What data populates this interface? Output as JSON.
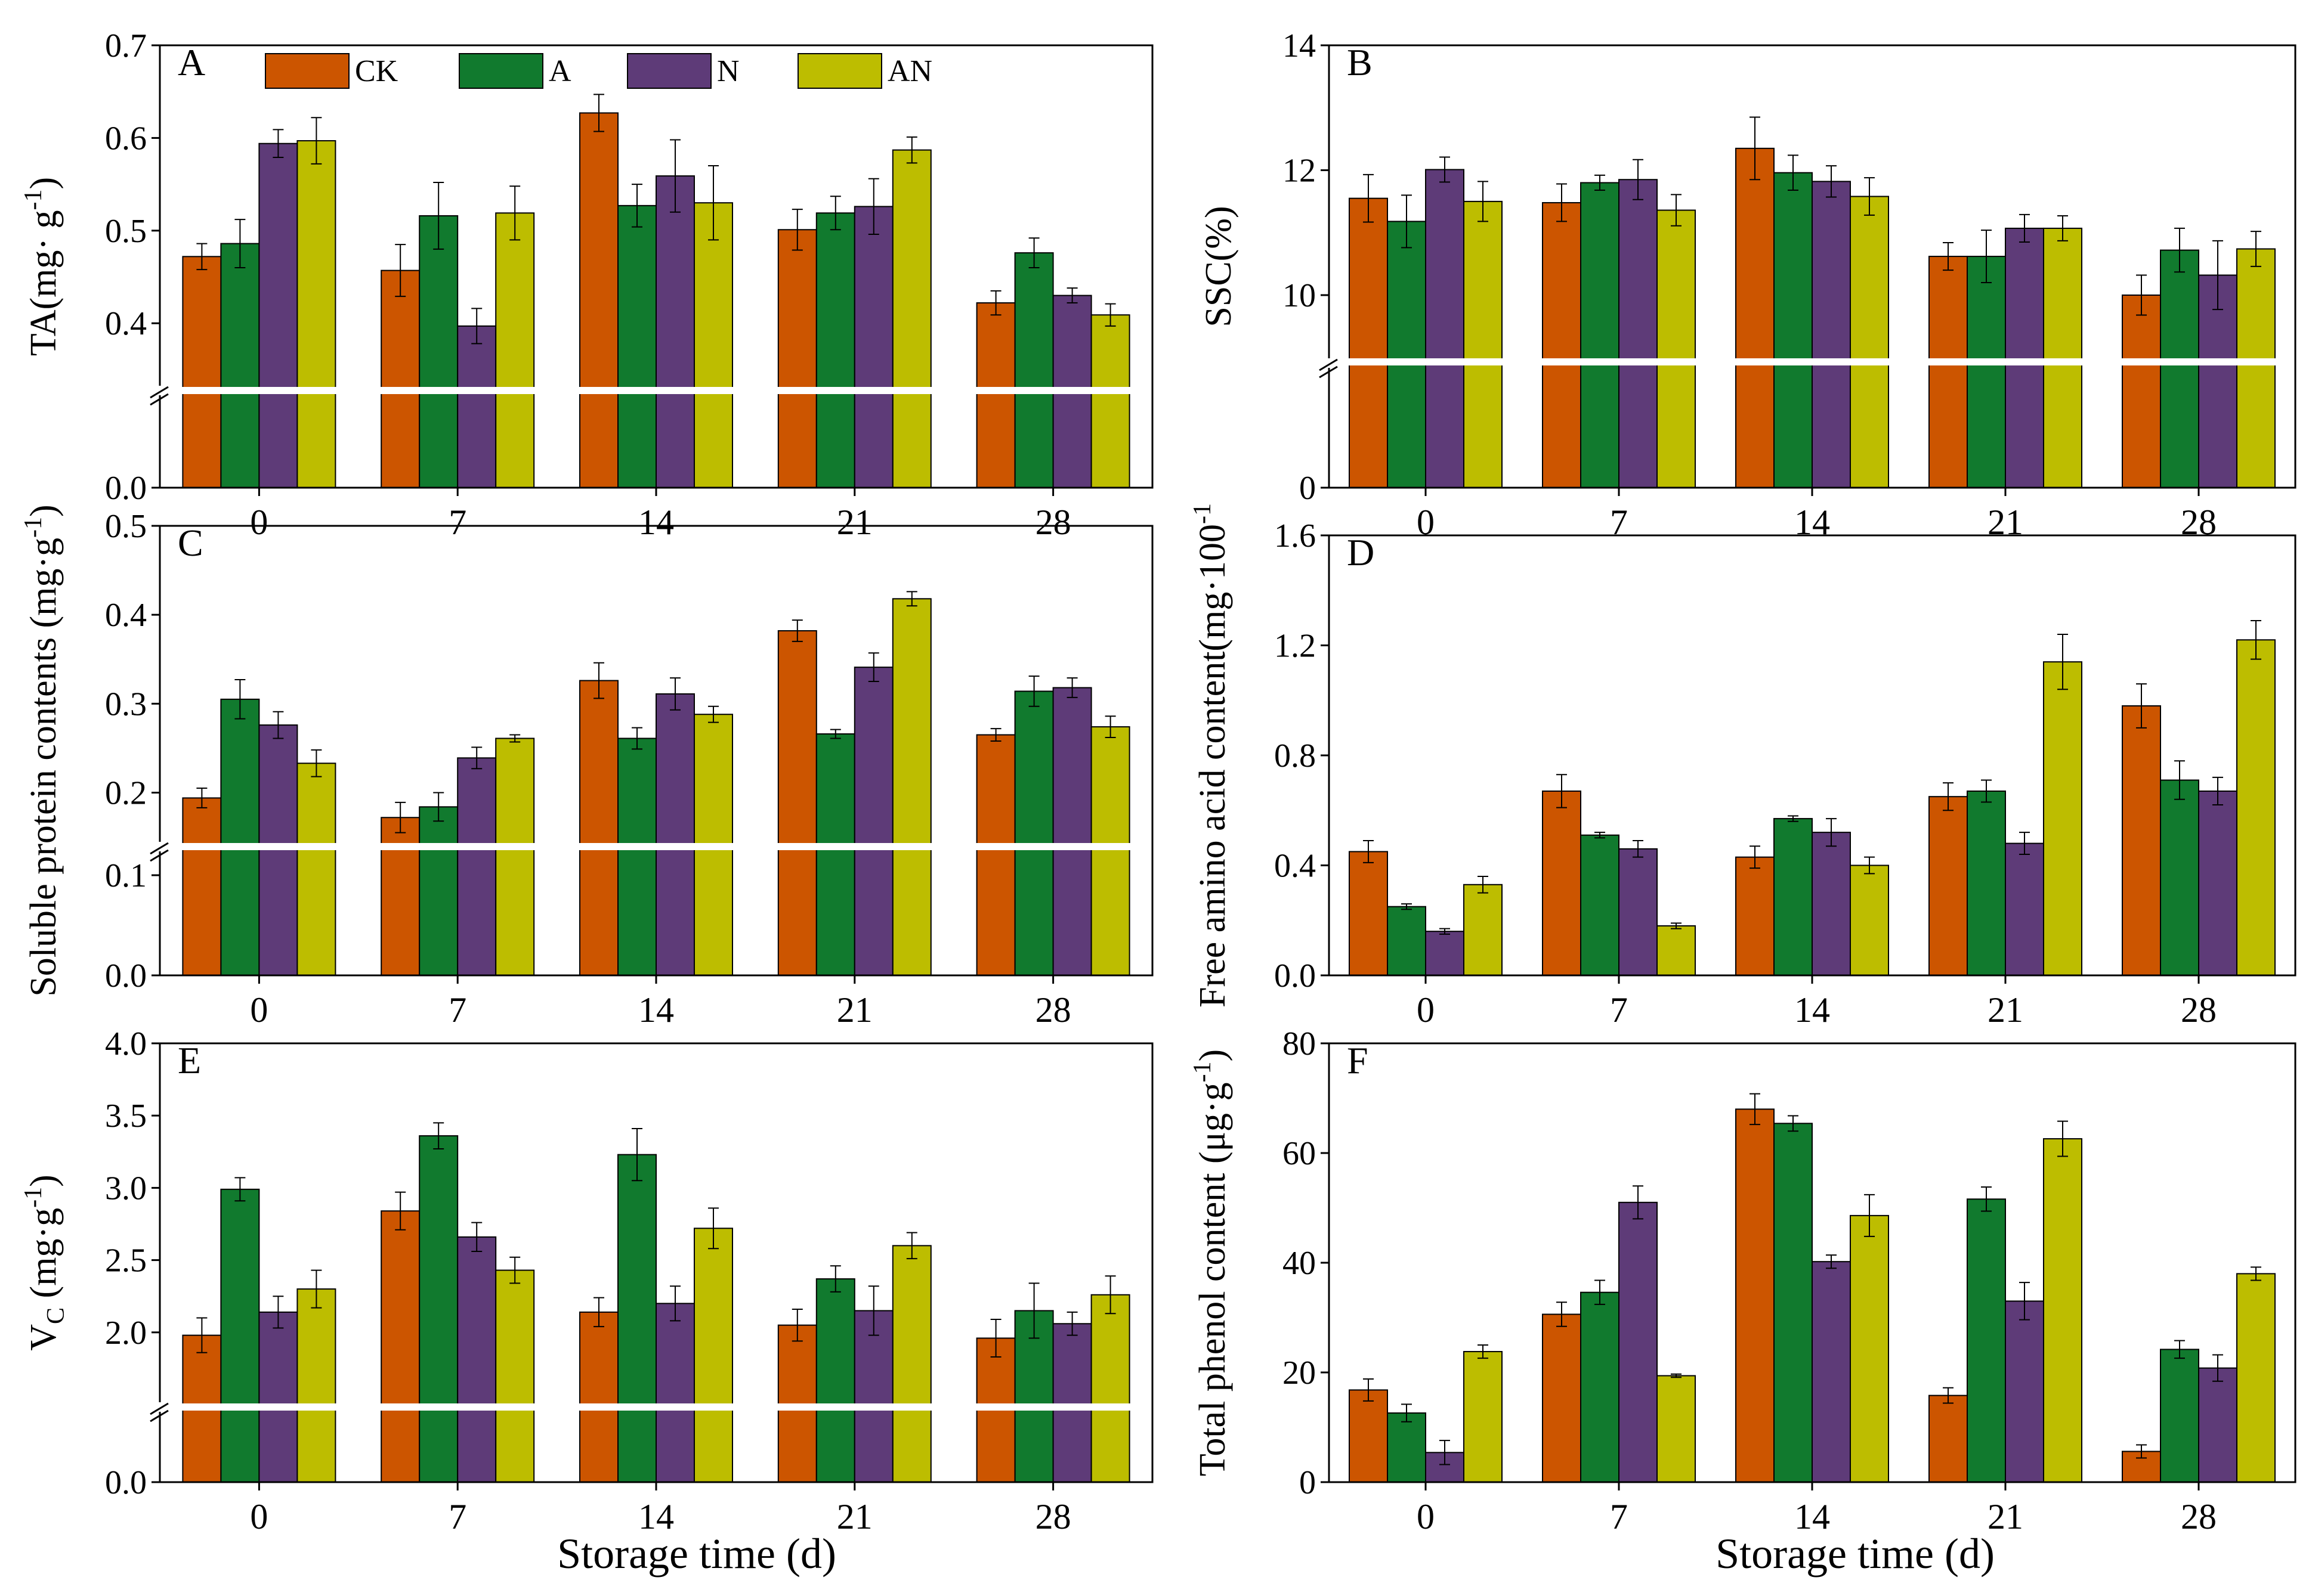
{
  "legend": {
    "entries": [
      "CK",
      "A",
      "N",
      "AN"
    ],
    "colors": [
      "#cc5500",
      "#117a2e",
      "#5e3b78",
      "#bdbd00"
    ]
  },
  "xlabel_bottom": "Storage time (d)",
  "chart_data": [
    {
      "id": "A",
      "type": "bar",
      "panel_label": "A",
      "ylabel_base": "TA(mg· g",
      "ylabel_sup": "-1",
      "ylabel_tail": ")",
      "categories": [
        "0",
        "7",
        "14",
        "21",
        "28"
      ],
      "series": [
        {
          "name": "CK",
          "values": [
            0.472,
            0.457,
            0.627,
            0.501,
            0.422
          ],
          "err": [
            0.014,
            0.028,
            0.02,
            0.022,
            0.013
          ]
        },
        {
          "name": "A",
          "values": [
            0.486,
            0.516,
            0.527,
            0.519,
            0.476
          ],
          "err": [
            0.026,
            0.036,
            0.023,
            0.018,
            0.016
          ]
        },
        {
          "name": "N",
          "values": [
            0.594,
            0.397,
            0.559,
            0.526,
            0.43
          ],
          "err": [
            0.015,
            0.019,
            0.039,
            0.03,
            0.008
          ]
        },
        {
          "name": "AN",
          "values": [
            0.597,
            0.519,
            0.53,
            0.587,
            0.409
          ],
          "err": [
            0.025,
            0.029,
            0.04,
            0.014,
            0.012
          ]
        }
      ],
      "yticks_upper": [
        "0.4",
        "0.5",
        "0.6",
        "0.7"
      ],
      "ytick_lower": "0.0",
      "ylim_upper": [
        0.33,
        0.7
      ],
      "legend_placement": "top"
    },
    {
      "id": "B",
      "type": "bar",
      "panel_label": "B",
      "ylabel_base": "SSC(%)",
      "ylabel_sup": "",
      "ylabel_tail": "",
      "categories": [
        "0",
        "7",
        "14",
        "21",
        "28"
      ],
      "series": [
        {
          "name": "CK",
          "values": [
            11.55,
            11.48,
            12.35,
            10.62,
            10.0
          ],
          "err": [
            0.38,
            0.3,
            0.5,
            0.22,
            0.32
          ]
        },
        {
          "name": "A",
          "values": [
            11.18,
            11.8,
            11.96,
            10.62,
            10.72
          ],
          "err": [
            0.42,
            0.12,
            0.28,
            0.42,
            0.35
          ]
        },
        {
          "name": "N",
          "values": [
            12.01,
            11.85,
            11.82,
            11.07,
            10.32
          ],
          "err": [
            0.2,
            0.32,
            0.25,
            0.22,
            0.55
          ]
        },
        {
          "name": "AN",
          "values": [
            11.5,
            11.36,
            11.58,
            11.07,
            10.74
          ],
          "err": [
            0.32,
            0.25,
            0.3,
            0.2,
            0.28
          ]
        }
      ],
      "yticks_upper": [
        "10",
        "12",
        "14"
      ],
      "ytick_lower": "0",
      "ylim_upper": [
        8.95,
        14
      ]
    },
    {
      "id": "C",
      "type": "bar",
      "panel_label": "C",
      "ylabel_base": "Soluble protein contents (mg·g",
      "ylabel_sup": "-1",
      "ylabel_tail": ")",
      "categories": [
        "0",
        "7",
        "14",
        "21",
        "28"
      ],
      "series": [
        {
          "name": "CK",
          "values": [
            0.194,
            0.172,
            0.326,
            0.382,
            0.265
          ],
          "err": [
            0.011,
            0.017,
            0.02,
            0.012,
            0.007
          ]
        },
        {
          "name": "A",
          "values": [
            0.305,
            0.184,
            0.261,
            0.266,
            0.314
          ],
          "err": [
            0.022,
            0.016,
            0.012,
            0.005,
            0.017
          ]
        },
        {
          "name": "N",
          "values": [
            0.276,
            0.239,
            0.311,
            0.341,
            0.318
          ],
          "err": [
            0.015,
            0.012,
            0.018,
            0.016,
            0.011
          ]
        },
        {
          "name": "AN",
          "values": [
            0.233,
            0.261,
            0.288,
            0.418,
            0.274
          ],
          "err": [
            0.015,
            0.004,
            0.009,
            0.008,
            0.012
          ]
        }
      ],
      "yticks_upper": [
        "0.2",
        "0.3",
        "0.4",
        "0.5"
      ],
      "ytick_lower": "0.0",
      "ytick_mid": "0.1",
      "ylim_upper": [
        0.142,
        0.5
      ]
    },
    {
      "id": "D",
      "type": "bar",
      "panel_label": "D",
      "ylabel_base": "Free amino acid content(mg·100",
      "ylabel_sup": "-1",
      "ylabel_tail": "",
      "categories": [
        "0",
        "7",
        "14",
        "21",
        "28"
      ],
      "series": [
        {
          "name": "CK",
          "values": [
            0.45,
            0.67,
            0.43,
            0.65,
            0.98
          ],
          "err": [
            0.04,
            0.06,
            0.04,
            0.05,
            0.08
          ]
        },
        {
          "name": "A",
          "values": [
            0.25,
            0.51,
            0.57,
            0.67,
            0.71
          ],
          "err": [
            0.01,
            0.01,
            0.01,
            0.04,
            0.07
          ]
        },
        {
          "name": "N",
          "values": [
            0.16,
            0.46,
            0.52,
            0.48,
            0.67
          ],
          "err": [
            0.01,
            0.03,
            0.05,
            0.04,
            0.05
          ]
        },
        {
          "name": "AN",
          "values": [
            0.33,
            0.18,
            0.4,
            1.14,
            1.22
          ],
          "err": [
            0.03,
            0.01,
            0.03,
            0.1,
            0.07
          ]
        }
      ],
      "yticks": [
        "0.0",
        "0.4",
        "0.8",
        "1.2",
        "1.6"
      ],
      "ylim": [
        0,
        1.6
      ]
    },
    {
      "id": "E",
      "type": "bar",
      "panel_label": "E",
      "ylabel_base": "V",
      "ylabel_sub": "C",
      "ylabel_rest": " (mg·g",
      "ylabel_sup": "-1",
      "ylabel_tail": ")",
      "categories": [
        "0",
        "7",
        "14",
        "21",
        "28"
      ],
      "series": [
        {
          "name": "CK",
          "values": [
            1.98,
            2.84,
            2.14,
            2.05,
            1.96
          ],
          "err": [
            0.12,
            0.13,
            0.1,
            0.11,
            0.13
          ]
        },
        {
          "name": "A",
          "values": [
            2.99,
            3.36,
            3.23,
            2.37,
            2.15
          ],
          "err": [
            0.08,
            0.09,
            0.18,
            0.09,
            0.19
          ]
        },
        {
          "name": "N",
          "values": [
            2.14,
            2.66,
            2.2,
            2.15,
            2.06
          ],
          "err": [
            0.11,
            0.1,
            0.12,
            0.17,
            0.08
          ]
        },
        {
          "name": "AN",
          "values": [
            2.3,
            2.43,
            2.72,
            2.6,
            2.26
          ],
          "err": [
            0.13,
            0.09,
            0.14,
            0.09,
            0.13
          ]
        }
      ],
      "yticks_upper": [
        "2.0",
        "2.5",
        "3.0",
        "3.5",
        "4.0"
      ],
      "ytick_lower": "0.0",
      "ylim_upper": [
        1.5,
        4.0
      ]
    },
    {
      "id": "F",
      "type": "bar",
      "panel_label": "F",
      "ylabel_base": "Total phenol content (μg·g",
      "ylabel_sup": "-1",
      "ylabel_tail": ")",
      "categories": [
        "0",
        "7",
        "14",
        "21",
        "28"
      ],
      "series": [
        {
          "name": "CK",
          "values": [
            16.8,
            30.6,
            68.0,
            15.8,
            5.6
          ],
          "err": [
            2.0,
            2.2,
            2.8,
            1.4,
            1.2
          ]
        },
        {
          "name": "A",
          "values": [
            12.6,
            34.6,
            65.4,
            51.6,
            24.2
          ],
          "err": [
            1.6,
            2.2,
            1.4,
            2.2,
            1.6
          ]
        },
        {
          "name": "N",
          "values": [
            5.4,
            51.0,
            40.2,
            33.0,
            20.8
          ],
          "err": [
            2.2,
            3.0,
            1.2,
            3.4,
            2.4
          ]
        },
        {
          "name": "AN",
          "values": [
            23.8,
            19.4,
            48.6,
            62.6,
            38.0
          ],
          "err": [
            1.2,
            0.3,
            3.8,
            3.2,
            1.2
          ]
        }
      ],
      "yticks": [
        "0",
        "20",
        "40",
        "60",
        "80"
      ],
      "ylim": [
        0,
        80
      ]
    }
  ]
}
